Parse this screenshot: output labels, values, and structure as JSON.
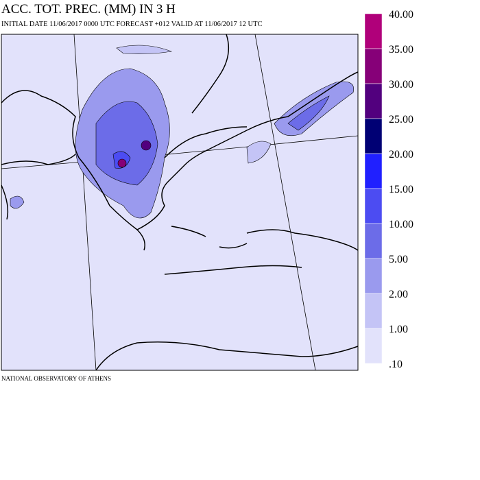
{
  "header": {
    "title": "ACC. TOT. PREC. (MM) IN 3 H",
    "subtitle": "INITIAL DATE 11/06/2017   0000 UTC FORECAST +012 VALID AT  11/06/2017  12 UTC"
  },
  "footer": "NATIONAL OBSERVATORY OF ATHENS",
  "legend": {
    "labels": [
      "40.00",
      "35.00",
      "30.00",
      "25.00",
      "20.00",
      "15.00",
      "10.00",
      "5.00",
      "2.00",
      "1.00",
      ".10"
    ],
    "colors": [
      "#b0007a",
      "#860078",
      "#52007e",
      "#000074",
      "#2020ff",
      "#4c4cf2",
      "#6c6ce8",
      "#9a9aee",
      "#c4c4f6",
      "#e2e2fb"
    ]
  }
}
